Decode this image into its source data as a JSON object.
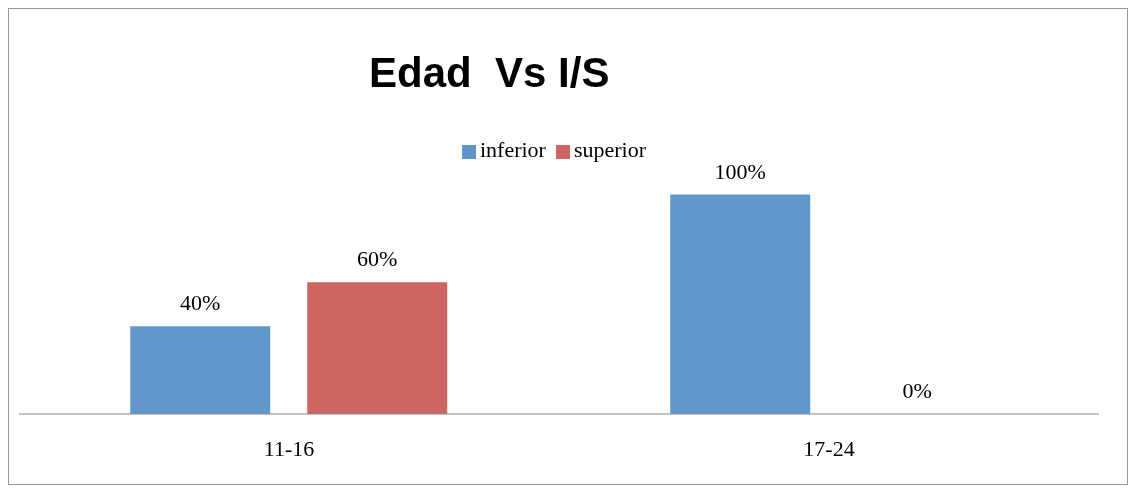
{
  "chart_data": {
    "type": "bar",
    "title": "Edad  Vs I/S",
    "categories": [
      "11-16",
      "17-24"
    ],
    "series": [
      {
        "name": "inferior",
        "color": "#6196cb",
        "values": [
          40,
          100
        ],
        "value_labels": [
          "40%",
          "100%"
        ]
      },
      {
        "name": "superior",
        "color": "#cd6560",
        "values": [
          60,
          0
        ],
        "value_labels": [
          "60%",
          "0%"
        ]
      }
    ],
    "legend": "top",
    "grid": false
  }
}
